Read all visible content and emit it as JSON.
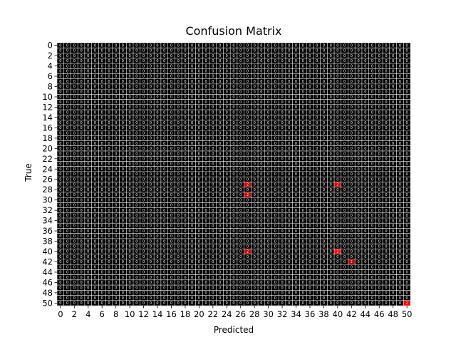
{
  "chart_data": {
    "type": "heatmap",
    "title": "Confusion Matrix",
    "xlabel": "Predicted",
    "ylabel": "True",
    "n_classes": 51,
    "x_ticks": [
      "0",
      "2",
      "4",
      "6",
      "8",
      "10",
      "12",
      "14",
      "16",
      "18",
      "20",
      "22",
      "24",
      "26",
      "28",
      "30",
      "32",
      "34",
      "36",
      "38",
      "40",
      "42",
      "44",
      "46",
      "48",
      "50"
    ],
    "y_ticks": [
      "0",
      "2",
      "4",
      "6",
      "8",
      "10",
      "12",
      "14",
      "16",
      "18",
      "20",
      "22",
      "24",
      "26",
      "28",
      "30",
      "32",
      "34",
      "36",
      "38",
      "40",
      "42",
      "44",
      "46",
      "48",
      "50"
    ],
    "colormap": [
      "#000000",
      "#ff0000"
    ],
    "cell_grid": true,
    "highlighted_cells": [
      {
        "true": 27,
        "predicted": 27,
        "level": 0.8
      },
      {
        "true": 27,
        "predicted": 40,
        "level": 0.8
      },
      {
        "true": 29,
        "predicted": 27,
        "level": 0.8
      },
      {
        "true": 40,
        "predicted": 27,
        "level": 0.8
      },
      {
        "true": 40,
        "predicted": 40,
        "level": 1.0
      },
      {
        "true": 42,
        "predicted": 42,
        "level": 0.7
      },
      {
        "true": 50,
        "predicted": 50,
        "level": 1.0
      }
    ]
  }
}
